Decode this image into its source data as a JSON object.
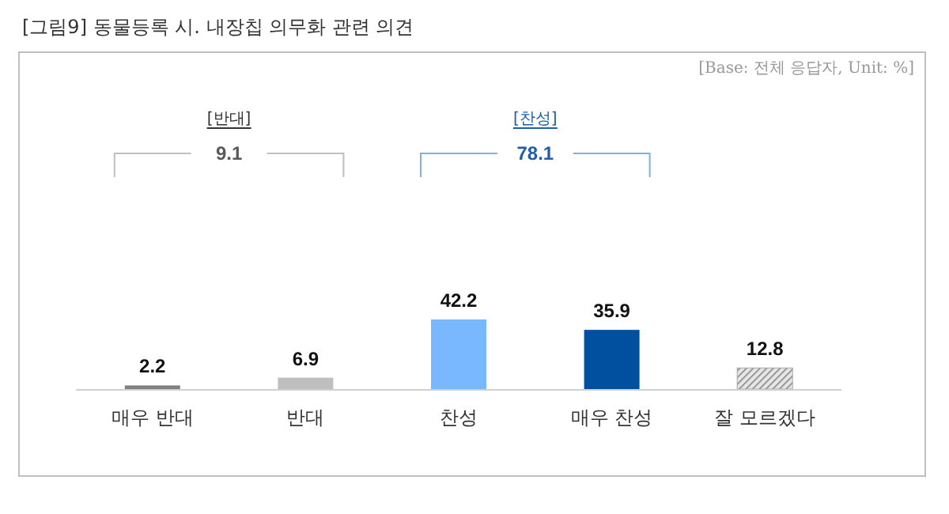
{
  "chart_data": {
    "type": "bar",
    "title": "[그림9] 동물등록 시. 내장칩 의무화 관련 의견",
    "categories": [
      "매우 반대",
      "반대",
      "찬성",
      "매우 찬성",
      "잘 모르겠다"
    ],
    "values": [
      2.2,
      6.9,
      42.2,
      35.9,
      12.8
    ],
    "colors": [
      "#808080",
      "#bfbfbf",
      "#79b8ff",
      "#0050a0",
      "#a6a6a6"
    ],
    "data_labels": true,
    "annotations": [
      "[Base: 전체 응답자, Unit: %]",
      "[반대]",
      "9.1",
      "[찬성]",
      "78.1"
    ]
  }
}
